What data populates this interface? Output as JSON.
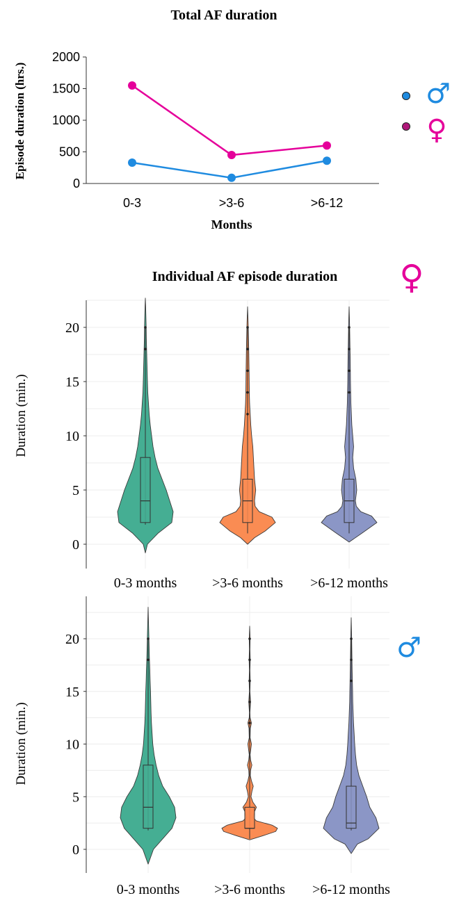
{
  "colors": {
    "female": "#e5009a",
    "male": "#1f8be0",
    "teal": "#45ae93",
    "orange": "#fa8c53",
    "purple": "#8b96c6",
    "outline": "#3a3a3a",
    "grid": "#ececec"
  },
  "legend": {
    "male_symbol": "♂",
    "female_symbol": "♀"
  },
  "chart_data": [
    {
      "type": "line",
      "title": "Total AF duration",
      "xlabel": "Months",
      "ylabel": "Episode duration (hrs.)",
      "categories": [
        "0-3",
        ">3-6",
        ">6-12"
      ],
      "ylim": [
        0,
        2000
      ],
      "yticks": [
        "0",
        "500",
        "1000",
        "1500",
        "2000"
      ],
      "legend_position": "right",
      "series": [
        {
          "name": "♂",
          "color": "#1f8be0",
          "values": [
            330,
            90,
            360
          ]
        },
        {
          "name": "♀",
          "color": "#e5009a",
          "values": [
            1550,
            450,
            600
          ]
        }
      ]
    },
    {
      "type": "violin",
      "title": "Individual AF episode duration",
      "group_symbol": "♀",
      "xlabel": "",
      "ylabel": "Duration (min.)",
      "categories": [
        "0-3 months",
        ">3-6 months",
        ">6-12 months"
      ],
      "ylim": [
        0,
        20
      ],
      "yticks": [
        "0",
        "5",
        "10",
        "15",
        "20"
      ],
      "grid": true,
      "violins": [
        {
          "category": "0-3 months",
          "color": "#45ae93",
          "min": -0.8,
          "max": 22.7,
          "box": {
            "q1": 2,
            "median": 4,
            "q3": 8
          },
          "whisker": [
            1.8,
            20
          ],
          "profile": [
            [
              -0.8,
              0
            ],
            [
              0,
              3
            ],
            [
              1,
              18
            ],
            [
              2,
              38
            ],
            [
              3,
              40
            ],
            [
              4,
              35
            ],
            [
              5,
              30
            ],
            [
              6,
              24
            ],
            [
              7,
              18
            ],
            [
              8,
              14
            ],
            [
              9,
              11
            ],
            [
              10,
              9
            ],
            [
              11,
              7
            ],
            [
              12,
              5.5
            ],
            [
              13,
              4.5
            ],
            [
              14,
              3.5
            ],
            [
              15,
              3
            ],
            [
              16,
              2.6
            ],
            [
              17,
              2.2
            ],
            [
              18,
              1.8
            ],
            [
              19,
              1.4
            ],
            [
              20,
              1.2
            ],
            [
              21,
              0.8
            ],
            [
              22,
              0.4
            ],
            [
              22.7,
              0
            ]
          ],
          "outliers": [
            18,
            20
          ]
        },
        {
          "category": ">3-6 months",
          "color": "#fa8c53",
          "min": 0,
          "max": 21.9,
          "box": {
            "q1": 2,
            "median": 4,
            "q3": 6
          },
          "whisker": [
            1,
            20
          ],
          "profile": [
            [
              0,
              0
            ],
            [
              0.6,
              12
            ],
            [
              1.2,
              30
            ],
            [
              2,
              48
            ],
            [
              2.5,
              42
            ],
            [
              3,
              20
            ],
            [
              3.5,
              13
            ],
            [
              4,
              12
            ],
            [
              5,
              14
            ],
            [
              6,
              12
            ],
            [
              7,
              11
            ],
            [
              8,
              10
            ],
            [
              9,
              9
            ],
            [
              10,
              7
            ],
            [
              11,
              5.5
            ],
            [
              12,
              4.5
            ],
            [
              13,
              3.5
            ],
            [
              14,
              3
            ],
            [
              15,
              2.8
            ],
            [
              16,
              2.6
            ],
            [
              17,
              2.3
            ],
            [
              18,
              2
            ],
            [
              19,
              1.6
            ],
            [
              20,
              1.2
            ],
            [
              21,
              0.6
            ],
            [
              21.9,
              0
            ]
          ],
          "outliers": [
            12,
            14,
            16,
            18,
            20
          ]
        },
        {
          "category": ">6-12 months",
          "color": "#8b96c6",
          "min": 0.2,
          "max": 21.9,
          "box": {
            "q1": 2,
            "median": 4,
            "q3": 6
          },
          "whisker": [
            1,
            20
          ],
          "profile": [
            [
              0.2,
              0
            ],
            [
              1,
              28
            ],
            [
              2,
              62
            ],
            [
              2.6,
              50
            ],
            [
              3,
              26
            ],
            [
              3.5,
              16
            ],
            [
              4,
              14
            ],
            [
              5,
              17
            ],
            [
              6,
              15
            ],
            [
              7,
              10
            ],
            [
              8,
              8
            ],
            [
              9,
              10
            ],
            [
              10,
              8
            ],
            [
              11,
              6
            ],
            [
              12,
              5
            ],
            [
              13,
              4
            ],
            [
              14,
              3.5
            ],
            [
              15,
              3
            ],
            [
              16,
              2.8
            ],
            [
              17,
              2.5
            ],
            [
              18,
              2
            ],
            [
              19,
              1.6
            ],
            [
              20,
              1.2
            ],
            [
              21,
              0.6
            ],
            [
              21.9,
              0
            ]
          ],
          "outliers": [
            14,
            16,
            18,
            20
          ]
        }
      ]
    },
    {
      "type": "violin",
      "title": "",
      "group_symbol": "♂",
      "xlabel": "",
      "ylabel": "Duration (min.)",
      "categories": [
        "0-3 months",
        ">3-6 months",
        ">6-12 months"
      ],
      "ylim": [
        0,
        20
      ],
      "yticks": [
        "0",
        "5",
        "10",
        "15",
        "20"
      ],
      "grid": true,
      "violins": [
        {
          "category": "0-3 months",
          "color": "#45ae93",
          "min": -1.4,
          "max": 23,
          "box": {
            "q1": 2,
            "median": 4,
            "q3": 8
          },
          "whisker": [
            1.8,
            20
          ],
          "profile": [
            [
              -1.4,
              0
            ],
            [
              0,
              4
            ],
            [
              1,
              11
            ],
            [
              2,
              18
            ],
            [
              3,
              21
            ],
            [
              4,
              20
            ],
            [
              5,
              16
            ],
            [
              6,
              11
            ],
            [
              7,
              8
            ],
            [
              8,
              6
            ],
            [
              9,
              4.5
            ],
            [
              10,
              3.5
            ],
            [
              11,
              3
            ],
            [
              12,
              2.5
            ],
            [
              13,
              2.2
            ],
            [
              14,
              2
            ],
            [
              15,
              1.8
            ],
            [
              16,
              1.5
            ],
            [
              17,
              1.3
            ],
            [
              18,
              1
            ],
            [
              19,
              0.8
            ],
            [
              20,
              0.6
            ],
            [
              21,
              0.4
            ],
            [
              22,
              0.2
            ],
            [
              23,
              0
            ]
          ],
          "outliers": [
            18,
            20
          ]
        },
        {
          "category": ">3-6 months",
          "color": "#fa8c53",
          "min": 0.9,
          "max": 21.2,
          "box": {
            "q1": 2,
            "median": 2,
            "q3": 4
          },
          "whisker": [
            1,
            20
          ],
          "profile": [
            [
              0.9,
              0
            ],
            [
              1.3,
              30
            ],
            [
              1.7,
              58
            ],
            [
              2,
              62
            ],
            [
              2.3,
              50
            ],
            [
              2.7,
              15
            ],
            [
              3,
              8
            ],
            [
              3.5,
              10
            ],
            [
              4,
              15
            ],
            [
              4.5,
              7
            ],
            [
              5,
              3
            ],
            [
              5.5,
              5
            ],
            [
              6,
              8
            ],
            [
              6.5,
              4
            ],
            [
              7,
              1.5
            ],
            [
              7.5,
              2
            ],
            [
              8,
              5
            ],
            [
              8.5,
              2
            ],
            [
              9,
              1
            ],
            [
              10,
              4
            ],
            [
              10.6,
              1
            ],
            [
              11.5,
              1.5
            ],
            [
              12,
              4
            ],
            [
              12.5,
              1
            ],
            [
              13,
              0.6
            ],
            [
              14,
              2
            ],
            [
              15,
              0.6
            ],
            [
              16,
              1.2
            ],
            [
              17,
              0.6
            ],
            [
              18,
              1.2
            ],
            [
              19,
              0.6
            ],
            [
              20,
              1
            ],
            [
              21.2,
              0
            ]
          ],
          "outliers": [
            12,
            14,
            16,
            18,
            20
          ]
        },
        {
          "category": ">6-12 months",
          "color": "#8b96c6",
          "min": -0.4,
          "max": 22,
          "box": {
            "q1": 2,
            "median": 2.5,
            "q3": 6
          },
          "whisker": [
            1.8,
            20
          ],
          "profile": [
            [
              -0.4,
              0
            ],
            [
              0.5,
              8
            ],
            [
              1,
              22
            ],
            [
              2,
              36
            ],
            [
              3,
              32
            ],
            [
              4,
              24
            ],
            [
              5,
              20
            ],
            [
              6,
              15
            ],
            [
              7,
              10
            ],
            [
              8,
              7
            ],
            [
              9,
              5.5
            ],
            [
              10,
              4.5
            ],
            [
              11,
              3.8
            ],
            [
              12,
              3
            ],
            [
              13,
              2.5
            ],
            [
              14,
              2
            ],
            [
              15,
              1.8
            ],
            [
              16,
              1.5
            ],
            [
              17,
              1.2
            ],
            [
              18,
              1
            ],
            [
              19,
              0.8
            ],
            [
              20,
              0.6
            ],
            [
              21,
              0.3
            ],
            [
              22,
              0
            ]
          ],
          "outliers": [
            16,
            18,
            20
          ]
        }
      ]
    }
  ]
}
